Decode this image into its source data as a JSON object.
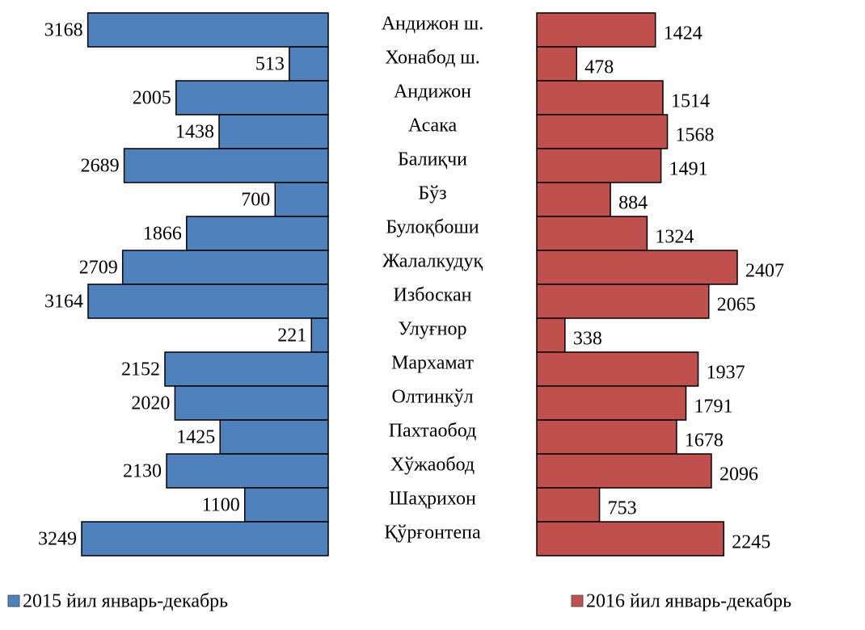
{
  "chart_data": {
    "type": "butterfly",
    "categories": [
      "Андижон ш.",
      "Хонабод ш.",
      "Андижон",
      "Асака",
      "Балиқчи",
      "Бўз",
      "Булоқбоши",
      "Жалалкудуқ",
      "Избоскан",
      "Улуғнор",
      "Мархамат",
      "Олтинкўл",
      "Пахтаобод",
      "Хўжаобод",
      "Шаҳрихон",
      "Қўрғонтепа"
    ],
    "series": [
      {
        "name": "2015 йил январь-декабрь",
        "color": "#4f81bd",
        "values": [
          3168,
          513,
          2005,
          1438,
          2689,
          700,
          1866,
          2709,
          3164,
          221,
          2152,
          2020,
          1425,
          2130,
          1100,
          3249
        ]
      },
      {
        "name": "2016 йил январь-декабрь",
        "color": "#c0504d",
        "values": [
          1424,
          478,
          1514,
          1568,
          1491,
          884,
          1324,
          2407,
          2065,
          338,
          1937,
          1791,
          1678,
          2096,
          753,
          2245
        ]
      }
    ],
    "legend": "bottom"
  }
}
